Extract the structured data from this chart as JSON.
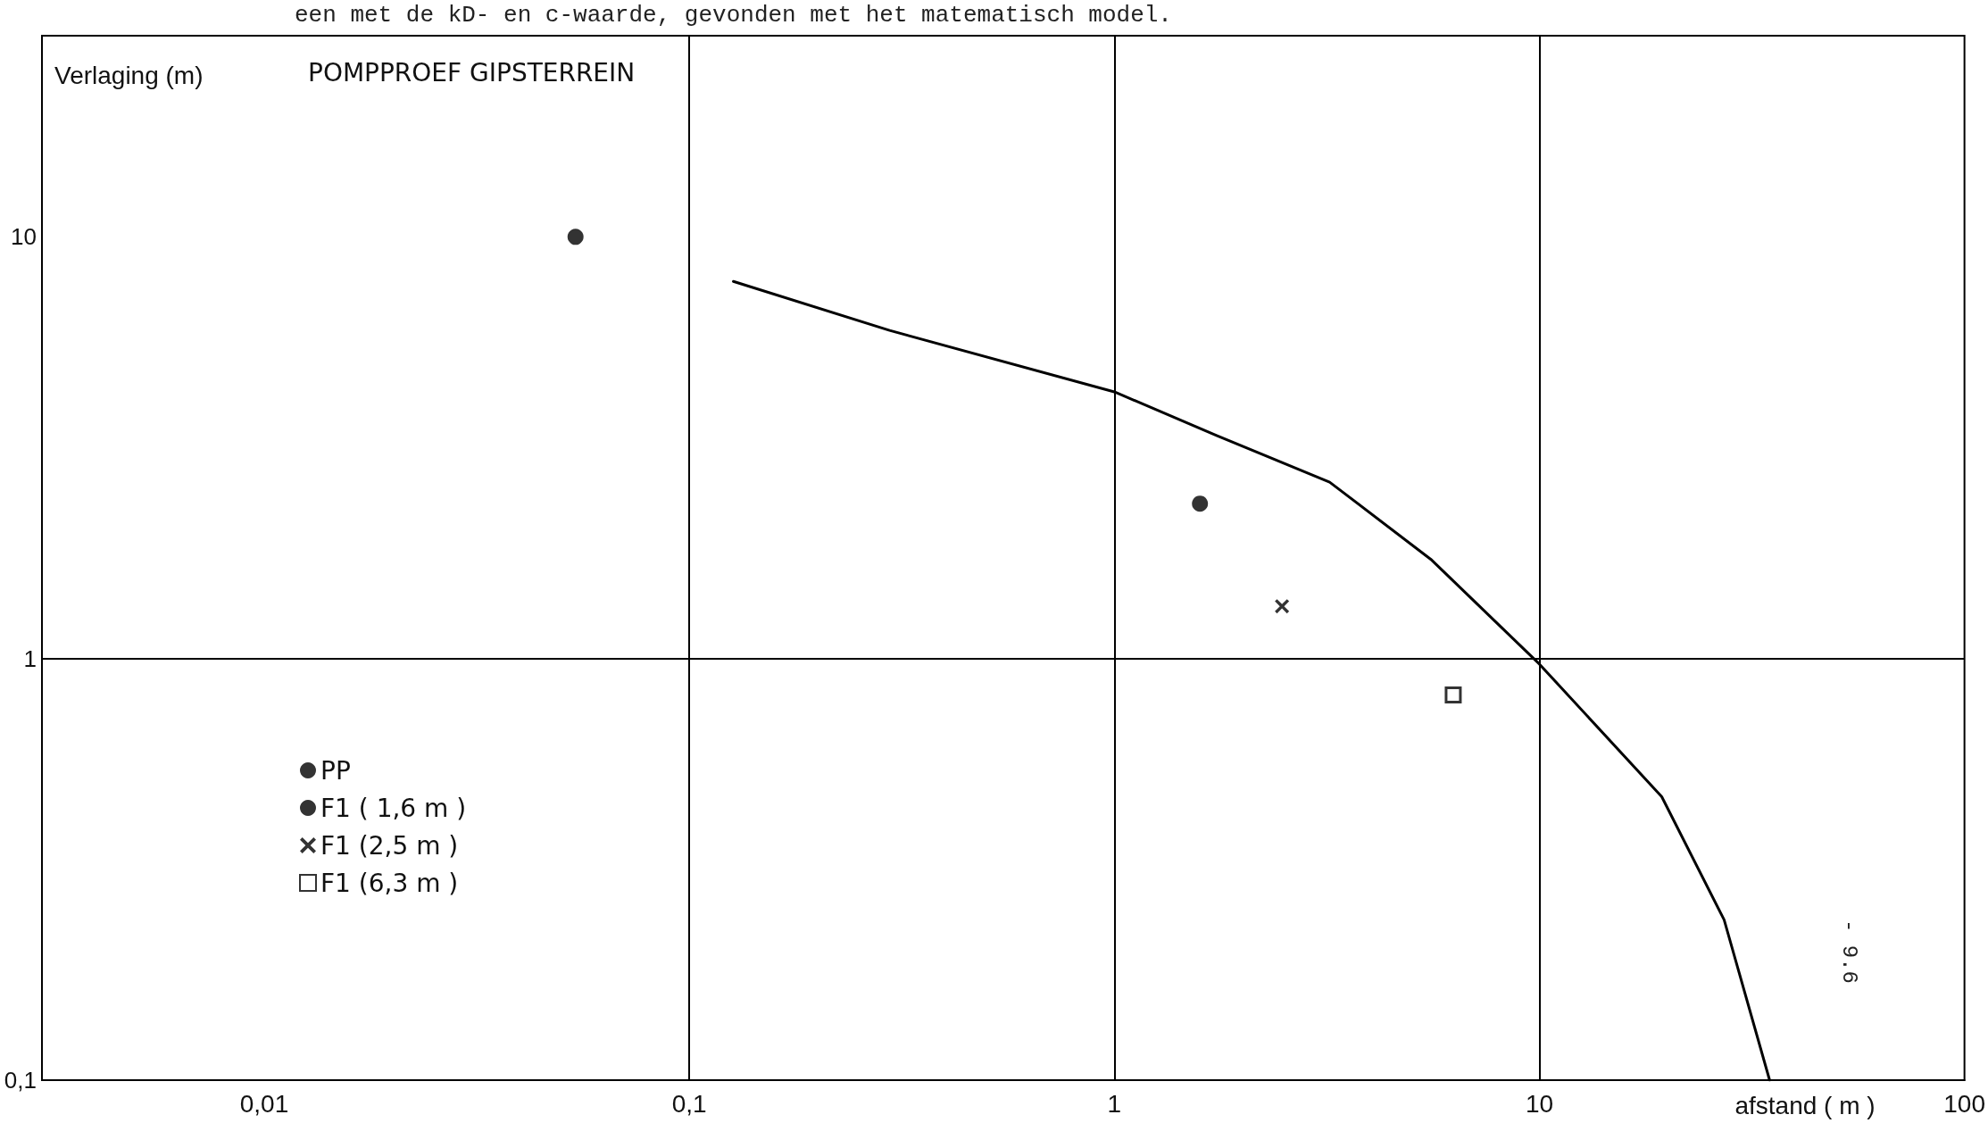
{
  "chart_data": {
    "type": "scatter",
    "title": "POMPPROEF GIPSTERREIN",
    "xlabel": "afstand ( m )",
    "ylabel": "Verlaging (m)",
    "annotations": [
      "een met de kD- en c-waarde, gevonden met het matematisch model.",
      "- 9.6"
    ],
    "log": "xy",
    "grid": true,
    "legend": "bottom left",
    "xlim": [
      0.003,
      100
    ],
    "ylim": [
      0.1,
      30
    ],
    "xticks": [
      {
        "value": 0.01,
        "label": "0,01"
      },
      {
        "value": 0.1,
        "label": "0,1"
      },
      1,
      10,
      100
    ],
    "yticks": [
      {
        "value": 0.1,
        "label": "0,1"
      },
      1,
      10
    ],
    "series": [
      {
        "name": "PP",
        "color": "#000000",
        "marker": "circle",
        "x": [
          0.054
        ],
        "values": [
          10
        ]
      },
      {
        "name": "F1 ( 1,6 m )",
        "color": "#000000",
        "marker": "circle",
        "x": [
          1.59
        ],
        "values": [
          2.33
        ]
      },
      {
        "name": "F1 (2,5 m )",
        "color": "#000000",
        "marker": "cross",
        "x": [
          2.48
        ],
        "values": [
          1.33
        ]
      },
      {
        "name": "F1 (6,3 m )",
        "color": "#000000",
        "marker": "square",
        "x": [
          6.27
        ],
        "values": [
          0.82
        ]
      },
      {
        "type": "line",
        "color": "#000000",
        "marker": "none",
        "x": [
          0.127,
          0.296,
          1,
          1.74,
          3.21,
          5.55,
          10,
          19.4,
          27.2,
          34.8
        ],
        "values": [
          7.84,
          6.0,
          4.29,
          3.38,
          2.62,
          1.72,
          0.97,
          0.47,
          0.24,
          0.1
        ]
      }
    ]
  }
}
